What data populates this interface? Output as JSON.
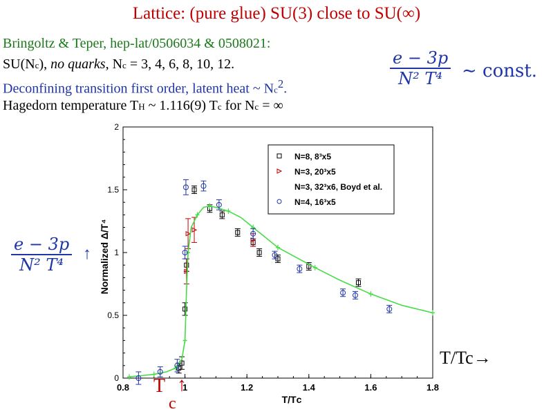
{
  "slide": {
    "title": "Lattice: (pure glue) SU(3) close to SU(∞)",
    "line1": "Bringoltz & Teper, hep-lat/0506034 & 0508021:",
    "line2a": "SU(N",
    "line2b": "c",
    "line2c": "), ",
    "line2d": "no quarks",
    "line2e": ", N",
    "line2f": "c",
    "line2g": " = 3, 4, 6, 8, 10, 12.",
    "line3a": "Deconfining transition first order, latent heat ~ N",
    "line3b": "c",
    "line3c": "2",
    "line3d": ".",
    "line4a": "Hagedorn temperature T",
    "line4b": "H",
    "line4c": " ~ 1.116(9) T",
    "line4d": "c",
    "line4e": " for N",
    "line4f": "c",
    "line4g": " = ∞",
    "formula_num": "e − 3p",
    "formula_den": "N² T⁴",
    "const_text": "∼ const.",
    "left_arrow": "↑",
    "ttc_label": "T/Tc→",
    "tc_T": "T",
    "tc_arrow": "↑",
    "tc_c": "c",
    "colors": {
      "title": "#c00000",
      "green_text": "#1a7a1a",
      "blue_text": "#1f35a8",
      "red_mark": "#c00000"
    }
  },
  "chart_data": {
    "type": "scatter",
    "xlabel": "T/Tᴄ",
    "ylabel": "Normalized Δ/T⁴",
    "xlim": [
      0.8,
      1.8
    ],
    "ylim": [
      0,
      2
    ],
    "xticks": [
      0.8,
      1,
      1.2,
      1.4,
      1.6,
      1.8
    ],
    "xtick_labels": [
      "0.8",
      "1",
      "1.2",
      "1.4",
      "1.6",
      "1.8"
    ],
    "yticks": [
      0,
      0.5,
      1,
      1.5,
      2
    ],
    "ytick_labels": [
      "0",
      "0.5",
      "1",
      "1.5",
      "2"
    ],
    "legend_position": "top-right",
    "legend": [
      "N=8, 8³x5",
      "N=3, 20³x5",
      "N=3, 32³x6, Boyd et al.",
      "N=4, 16³x5"
    ],
    "series": [
      {
        "name": "N=8, 8³x5",
        "marker": "square",
        "color": "#000000",
        "x": [
          0.98,
          0.99,
          1.0,
          1.005,
          1.03,
          1.08,
          1.12,
          1.17,
          1.22,
          1.24,
          1.3,
          1.4,
          1.56
        ],
        "y": [
          0.08,
          0.12,
          0.55,
          0.9,
          1.5,
          1.35,
          1.3,
          1.16,
          1.08,
          1.0,
          0.95,
          0.89,
          0.76
        ],
        "err": [
          0.04,
          0.05,
          0.05,
          0.05,
          0.03,
          0.03,
          0.03,
          0.03,
          0.03,
          0.03,
          0.03,
          0.03,
          0.03
        ]
      },
      {
        "name": "N=3, 20³x5",
        "marker": "triangle",
        "color": "#c00000",
        "x": [
          1.005,
          1.01,
          1.03,
          1.22
        ],
        "y": [
          0.85,
          1.15,
          1.18,
          1.1
        ],
        "err": [
          0.1,
          0.12,
          0.1,
          0.05
        ]
      },
      {
        "name": "N=3, 32³x6, Boyd et al.",
        "marker": "line",
        "color": "#44dd44",
        "x": [
          0.82,
          0.86,
          0.9,
          0.94,
          0.97,
          0.99,
          1.0,
          1.005,
          1.01,
          1.02,
          1.04,
          1.06,
          1.08,
          1.1,
          1.14,
          1.18,
          1.22,
          1.26,
          1.3,
          1.36,
          1.42,
          1.5,
          1.6,
          1.7,
          1.8
        ],
        "y": [
          0.01,
          0.02,
          0.03,
          0.05,
          0.08,
          0.15,
          0.3,
          0.7,
          1.0,
          1.2,
          1.3,
          1.36,
          1.37,
          1.36,
          1.33,
          1.28,
          1.2,
          1.12,
          1.04,
          0.96,
          0.88,
          0.78,
          0.67,
          0.58,
          0.52
        ]
      },
      {
        "name": "N=4, 16³x5",
        "marker": "circle",
        "color": "#1f35a8",
        "x": [
          0.85,
          0.92,
          0.975,
          1.0,
          1.003,
          1.06,
          1.11,
          1.22,
          1.29,
          1.37,
          1.51,
          1.55,
          1.66
        ],
        "y": [
          0.0,
          0.05,
          0.1,
          1.0,
          1.52,
          1.53,
          1.38,
          1.15,
          0.98,
          0.87,
          0.68,
          0.66,
          0.55
        ],
        "err": [
          0.05,
          0.04,
          0.05,
          0.05,
          0.06,
          0.04,
          0.04,
          0.04,
          0.03,
          0.03,
          0.03,
          0.03,
          0.03
        ]
      }
    ]
  }
}
